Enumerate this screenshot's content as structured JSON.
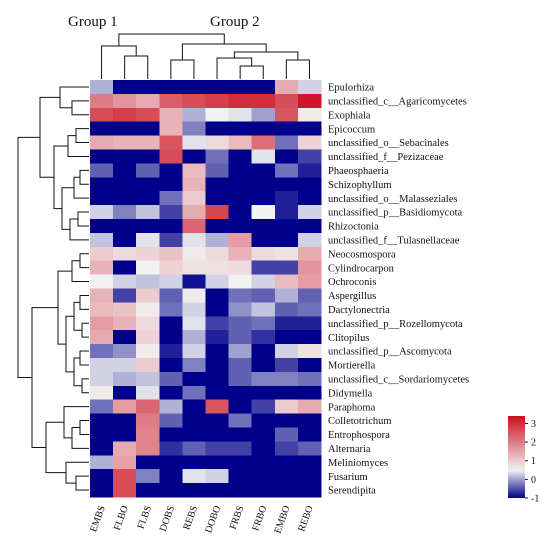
{
  "chart_data": {
    "type": "heatmap",
    "title": "",
    "group_labels": [
      "Group 1",
      "Group 2"
    ],
    "columns": [
      "EMBS",
      "FLBO",
      "FLBS",
      "DOBS",
      "REBS",
      "DOBO",
      "FRBS",
      "FRBO",
      "EMBO",
      "REBO"
    ],
    "rows": [
      "Epulorhiza",
      "unclassified_c__Agaricomycetes",
      "Exophiala",
      "Epicoccum",
      "unclassified_o__Sebacinales",
      "unclassified_f__Pezizaceae",
      "Phaeosphaeria",
      "Schizophyllum",
      "unclassified_o__Malasseziales",
      "unclassified_p__Basidiomycota",
      "Rhizoctonia",
      "unclassified_f__Tulasnellaceae",
      "Neocosmospora",
      "Cylindrocarpon",
      "Ochroconis",
      "Aspergillus",
      "Dactylonectria",
      "unclassified_p__Rozellomycota",
      "Clitopilus",
      "unclassified_p__Ascomycota",
      "Mortierella",
      "unclassified_c__Sordariomycetes",
      "Didymella",
      "Paraphoma",
      "Colletotrichum",
      "Entrophospora",
      "Alternaria",
      "Meliniomyces",
      "Fusarium",
      "Serendipita"
    ],
    "values": [
      [
        0.1,
        -1,
        -1,
        -1,
        -1,
        -1,
        -1,
        -1,
        1.4,
        0.3
      ],
      [
        2.0,
        1.7,
        1.4,
        2.4,
        2.6,
        2.8,
        3.0,
        3.0,
        2.6,
        3.3
      ],
      [
        2.6,
        2.8,
        2.6,
        1.3,
        0.1,
        0.5,
        0.4,
        0.0,
        2.5,
        0.6
      ],
      [
        -1,
        -1,
        -1,
        1.3,
        -0.2,
        -1,
        -1,
        -1,
        -1,
        -1
      ],
      [
        1.4,
        1.3,
        1.3,
        2.5,
        0.4,
        0.8,
        1.2,
        2.2,
        -0.3,
        0.9
      ],
      [
        -1,
        -1,
        -1,
        2.6,
        -1,
        -0.3,
        -1,
        0.4,
        -1,
        -0.6
      ],
      [
        -0.4,
        -1,
        -0.4,
        -1,
        1.2,
        -0.4,
        -1,
        -1,
        -0.3,
        -0.8
      ],
      [
        -1,
        -1,
        -1,
        -1,
        1.3,
        -1,
        -1,
        -1,
        -1,
        -1
      ],
      [
        -1,
        -1,
        -1,
        -0.3,
        1.0,
        -1,
        -1,
        -1,
        -0.8,
        -1
      ],
      [
        0.3,
        -0.2,
        0.2,
        -0.6,
        1.4,
        2.7,
        -1,
        0.5,
        -0.8,
        0.3
      ],
      [
        -1,
        -1,
        -1,
        -1,
        2.3,
        -1,
        -1,
        -1,
        -1,
        -1
      ],
      [
        0.2,
        -1,
        0.4,
        -0.6,
        0.4,
        0.1,
        1.6,
        -1,
        -1,
        0.3
      ],
      [
        1.0,
        0.8,
        0.9,
        1.1,
        0.6,
        0.8,
        1.3,
        0.8,
        0.7,
        1.4
      ],
      [
        1.3,
        -1,
        0.5,
        0.9,
        0.7,
        0.7,
        0.8,
        -0.6,
        -0.6,
        1.7
      ],
      [
        0.5,
        0.3,
        0.2,
        0.3,
        -0.9,
        0.3,
        0.5,
        0.3,
        1.2,
        1.6
      ],
      [
        1.3,
        -0.6,
        1.0,
        -0.4,
        0.6,
        -1,
        -0.3,
        -0.4,
        0.1,
        -0.4
      ],
      [
        1.2,
        1.1,
        0.6,
        -0.3,
        0.3,
        -1,
        -0.1,
        0.2,
        -0.4,
        -0.3
      ],
      [
        1.6,
        1.3,
        0.8,
        -1,
        0.4,
        -0.6,
        -0.4,
        -0.3,
        -0.8,
        -0.8
      ],
      [
        1.4,
        -1,
        0.9,
        -1,
        0.1,
        -0.8,
        -0.4,
        -0.7,
        -1,
        -1
      ],
      [
        -0.3,
        -0.1,
        0.6,
        -0.8,
        0.3,
        -1,
        0.0,
        -1,
        0.3,
        0.7
      ],
      [
        0.3,
        0.3,
        1.0,
        -1,
        -0.2,
        -1,
        -0.4,
        -1,
        -0.6,
        -1
      ],
      [
        0.3,
        0.1,
        0.2,
        -0.4,
        -1,
        -1,
        -0.4,
        -0.2,
        -0.2,
        -0.3
      ],
      [
        0.6,
        -1,
        0.4,
        -1,
        -0.3,
        -1,
        -1,
        -1,
        -1,
        -1
      ],
      [
        -0.3,
        1.6,
        2.3,
        0.1,
        -1,
        2.5,
        -1,
        -0.6,
        1.0,
        1.4
      ],
      [
        -1,
        -1,
        2.0,
        -0.4,
        -1,
        -1,
        -0.3,
        -1,
        -1,
        -1
      ],
      [
        -1,
        -1,
        1.9,
        -1,
        -1,
        -1,
        -1,
        -1,
        -0.4,
        -1
      ],
      [
        -1,
        1.4,
        1.9,
        -0.7,
        -0.4,
        -0.6,
        -0.6,
        -1,
        -0.6,
        -0.4
      ],
      [
        0.1,
        1.5,
        -1,
        -1,
        -1,
        -1,
        -1,
        -1,
        -1,
        -1
      ],
      [
        -1,
        2.6,
        -0.2,
        -1,
        0.4,
        0.3,
        -1,
        -1,
        -1,
        -1
      ],
      [
        -1,
        2.6,
        -1,
        -1,
        -1,
        -1,
        -1,
        -1,
        -1,
        -1
      ]
    ],
    "color_scale": {
      "min": -1,
      "max": 3.4,
      "ticks": [
        3,
        2,
        1,
        0,
        -1
      ],
      "low_color": "#00008b",
      "mid_color": "#f2f2f2",
      "high_color": "#cc0e1f",
      "mid_value": 0.5
    },
    "legend_placement": "bottom-right",
    "dendrograms": [
      "top (columns)",
      "left (rows)"
    ]
  }
}
